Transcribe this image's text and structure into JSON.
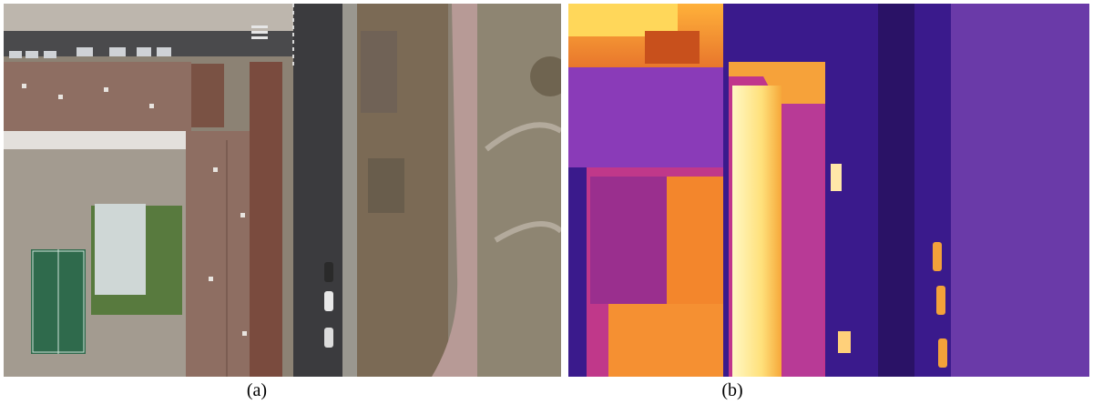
{
  "figure": {
    "panels": [
      {
        "id": "a",
        "caption": "(a)",
        "kind": "rgb-aerial-photo"
      },
      {
        "id": "b",
        "caption": "(b)",
        "kind": "thermal-aerial-image"
      }
    ],
    "colors": {
      "roof_brown": "#8e6e62",
      "asphalt": "#3b3b3e",
      "grass_dry": "#7a6650",
      "court_green": "#2f6a4c",
      "thermal_hot": "#fff6b0",
      "thermal_warm": "#f39a2c",
      "thermal_mid": "#c23a8a",
      "thermal_cool": "#3a1a8c"
    }
  }
}
